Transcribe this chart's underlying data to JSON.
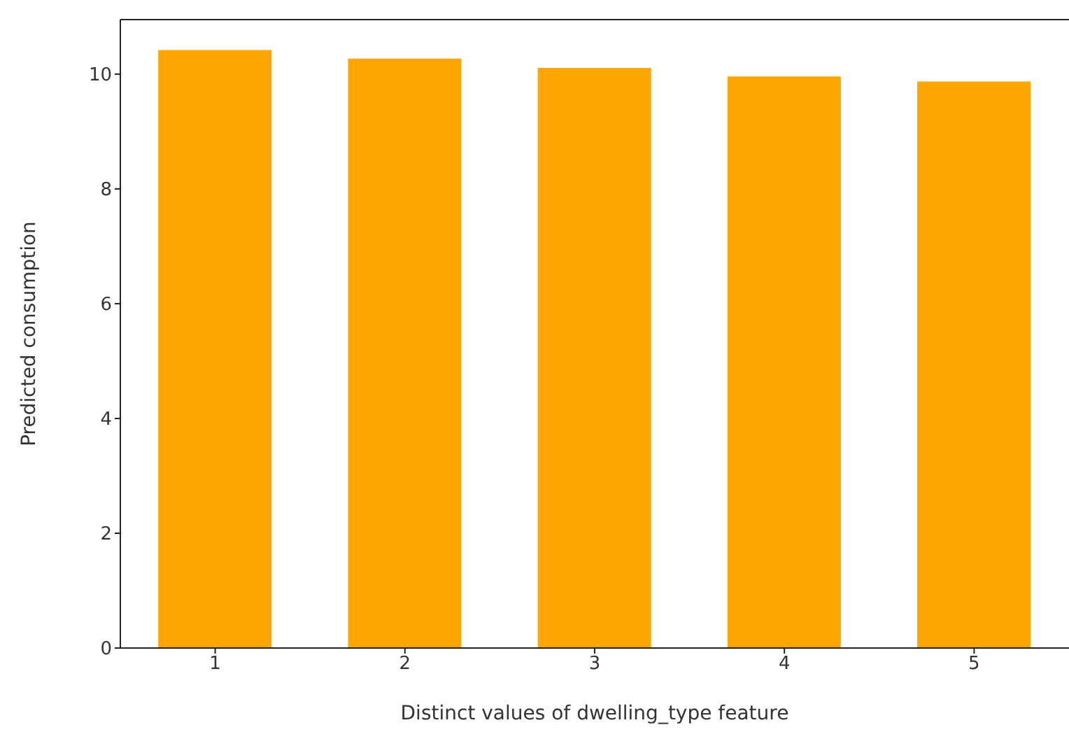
{
  "chart_data": {
    "type": "bar",
    "xlabel": "Distinct values of dwelling_type feature",
    "ylabel": "Predicted consumption",
    "categories": [
      "1",
      "2",
      "3",
      "4",
      "5"
    ],
    "values": [
      10.42,
      10.27,
      10.11,
      9.96,
      9.87
    ],
    "color": "#ffa500",
    "ylim": [
      0,
      10.95
    ],
    "yticks": [
      0,
      2,
      4,
      6,
      8,
      10
    ],
    "grid": false
  }
}
